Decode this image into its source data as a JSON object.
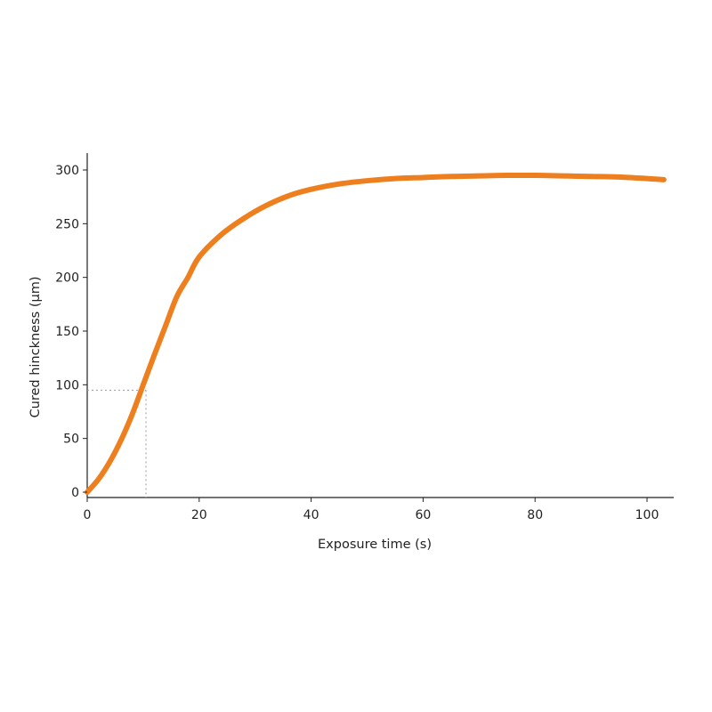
{
  "chart_data": {
    "type": "line",
    "title": "",
    "xlabel": "Exposure time (s)",
    "ylabel": "Cured hinckness (µm)",
    "xlim": [
      0,
      105
    ],
    "ylim": [
      -5,
      312
    ],
    "x_ticks": [
      0,
      20,
      40,
      60,
      80,
      100
    ],
    "y_ticks": [
      0,
      50,
      100,
      150,
      200,
      250,
      300
    ],
    "grid": false,
    "legend": "none",
    "colors": {
      "series": "#ee7f1e",
      "axis": "#222222",
      "guide": "#9a9a9a"
    },
    "series": [
      {
        "x": [
          0,
          2,
          4,
          6,
          8,
          10,
          12,
          14,
          16,
          18,
          20,
          24,
          28,
          32,
          36,
          40,
          45,
          50,
          55,
          60,
          65,
          70,
          75,
          80,
          85,
          90,
          95,
          100,
          103
        ],
        "values": [
          0,
          12,
          28,
          48,
          72,
          100,
          128,
          155,
          182,
          200,
          219,
          240,
          255,
          267,
          276,
          282,
          287,
          290,
          292,
          293,
          294,
          294.5,
          295,
          295,
          294.5,
          294,
          293.5,
          292,
          291
        ]
      }
    ],
    "annotations": [
      {
        "type": "guide",
        "x": 10.5,
        "y": 95
      }
    ]
  }
}
